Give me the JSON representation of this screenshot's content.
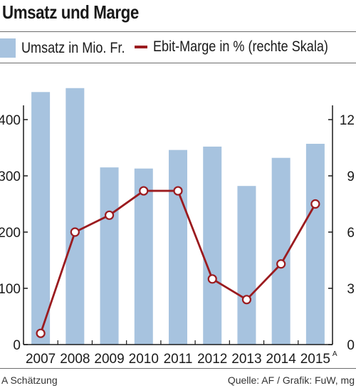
{
  "header": {
    "title": "Umsatz und Marge"
  },
  "legend": {
    "bar_label": "Umsatz in Mio. Fr.",
    "line_label": "Ebit-Marge in % (rechte Skala)"
  },
  "footer": {
    "note": "A Schätzung",
    "source": "Quelle: AF / Grafik: FuW, mg"
  },
  "colors": {
    "bar": "#a7c3df",
    "line": "#9b1b1f",
    "axis": "#1a1a1a"
  },
  "chart_data": {
    "type": "bar",
    "categories": [
      "2007",
      "2008",
      "2009",
      "2010",
      "2011",
      "2012",
      "2013",
      "2014",
      "2015"
    ],
    "category_footnote": {
      "index": 8,
      "mark": "A"
    },
    "series": [
      {
        "name": "Umsatz in Mio. Fr.",
        "type": "bar",
        "axis": "left",
        "values": [
          449,
          456,
          315,
          313,
          346,
          352,
          282,
          332,
          357
        ]
      },
      {
        "name": "Ebit-Marge in % (rechte Skala)",
        "type": "line",
        "axis": "right",
        "values": [
          0.6,
          6.0,
          6.9,
          8.2,
          8.2,
          3.5,
          2.4,
          4.3,
          7.5
        ]
      }
    ],
    "left_axis": {
      "ylim": [
        0,
        500
      ],
      "ticks": [
        0,
        100,
        200,
        300,
        400
      ]
    },
    "right_axis": {
      "ylim": [
        0,
        15
      ],
      "ticks": [
        0,
        3,
        6,
        9,
        12
      ]
    },
    "grid": false
  }
}
